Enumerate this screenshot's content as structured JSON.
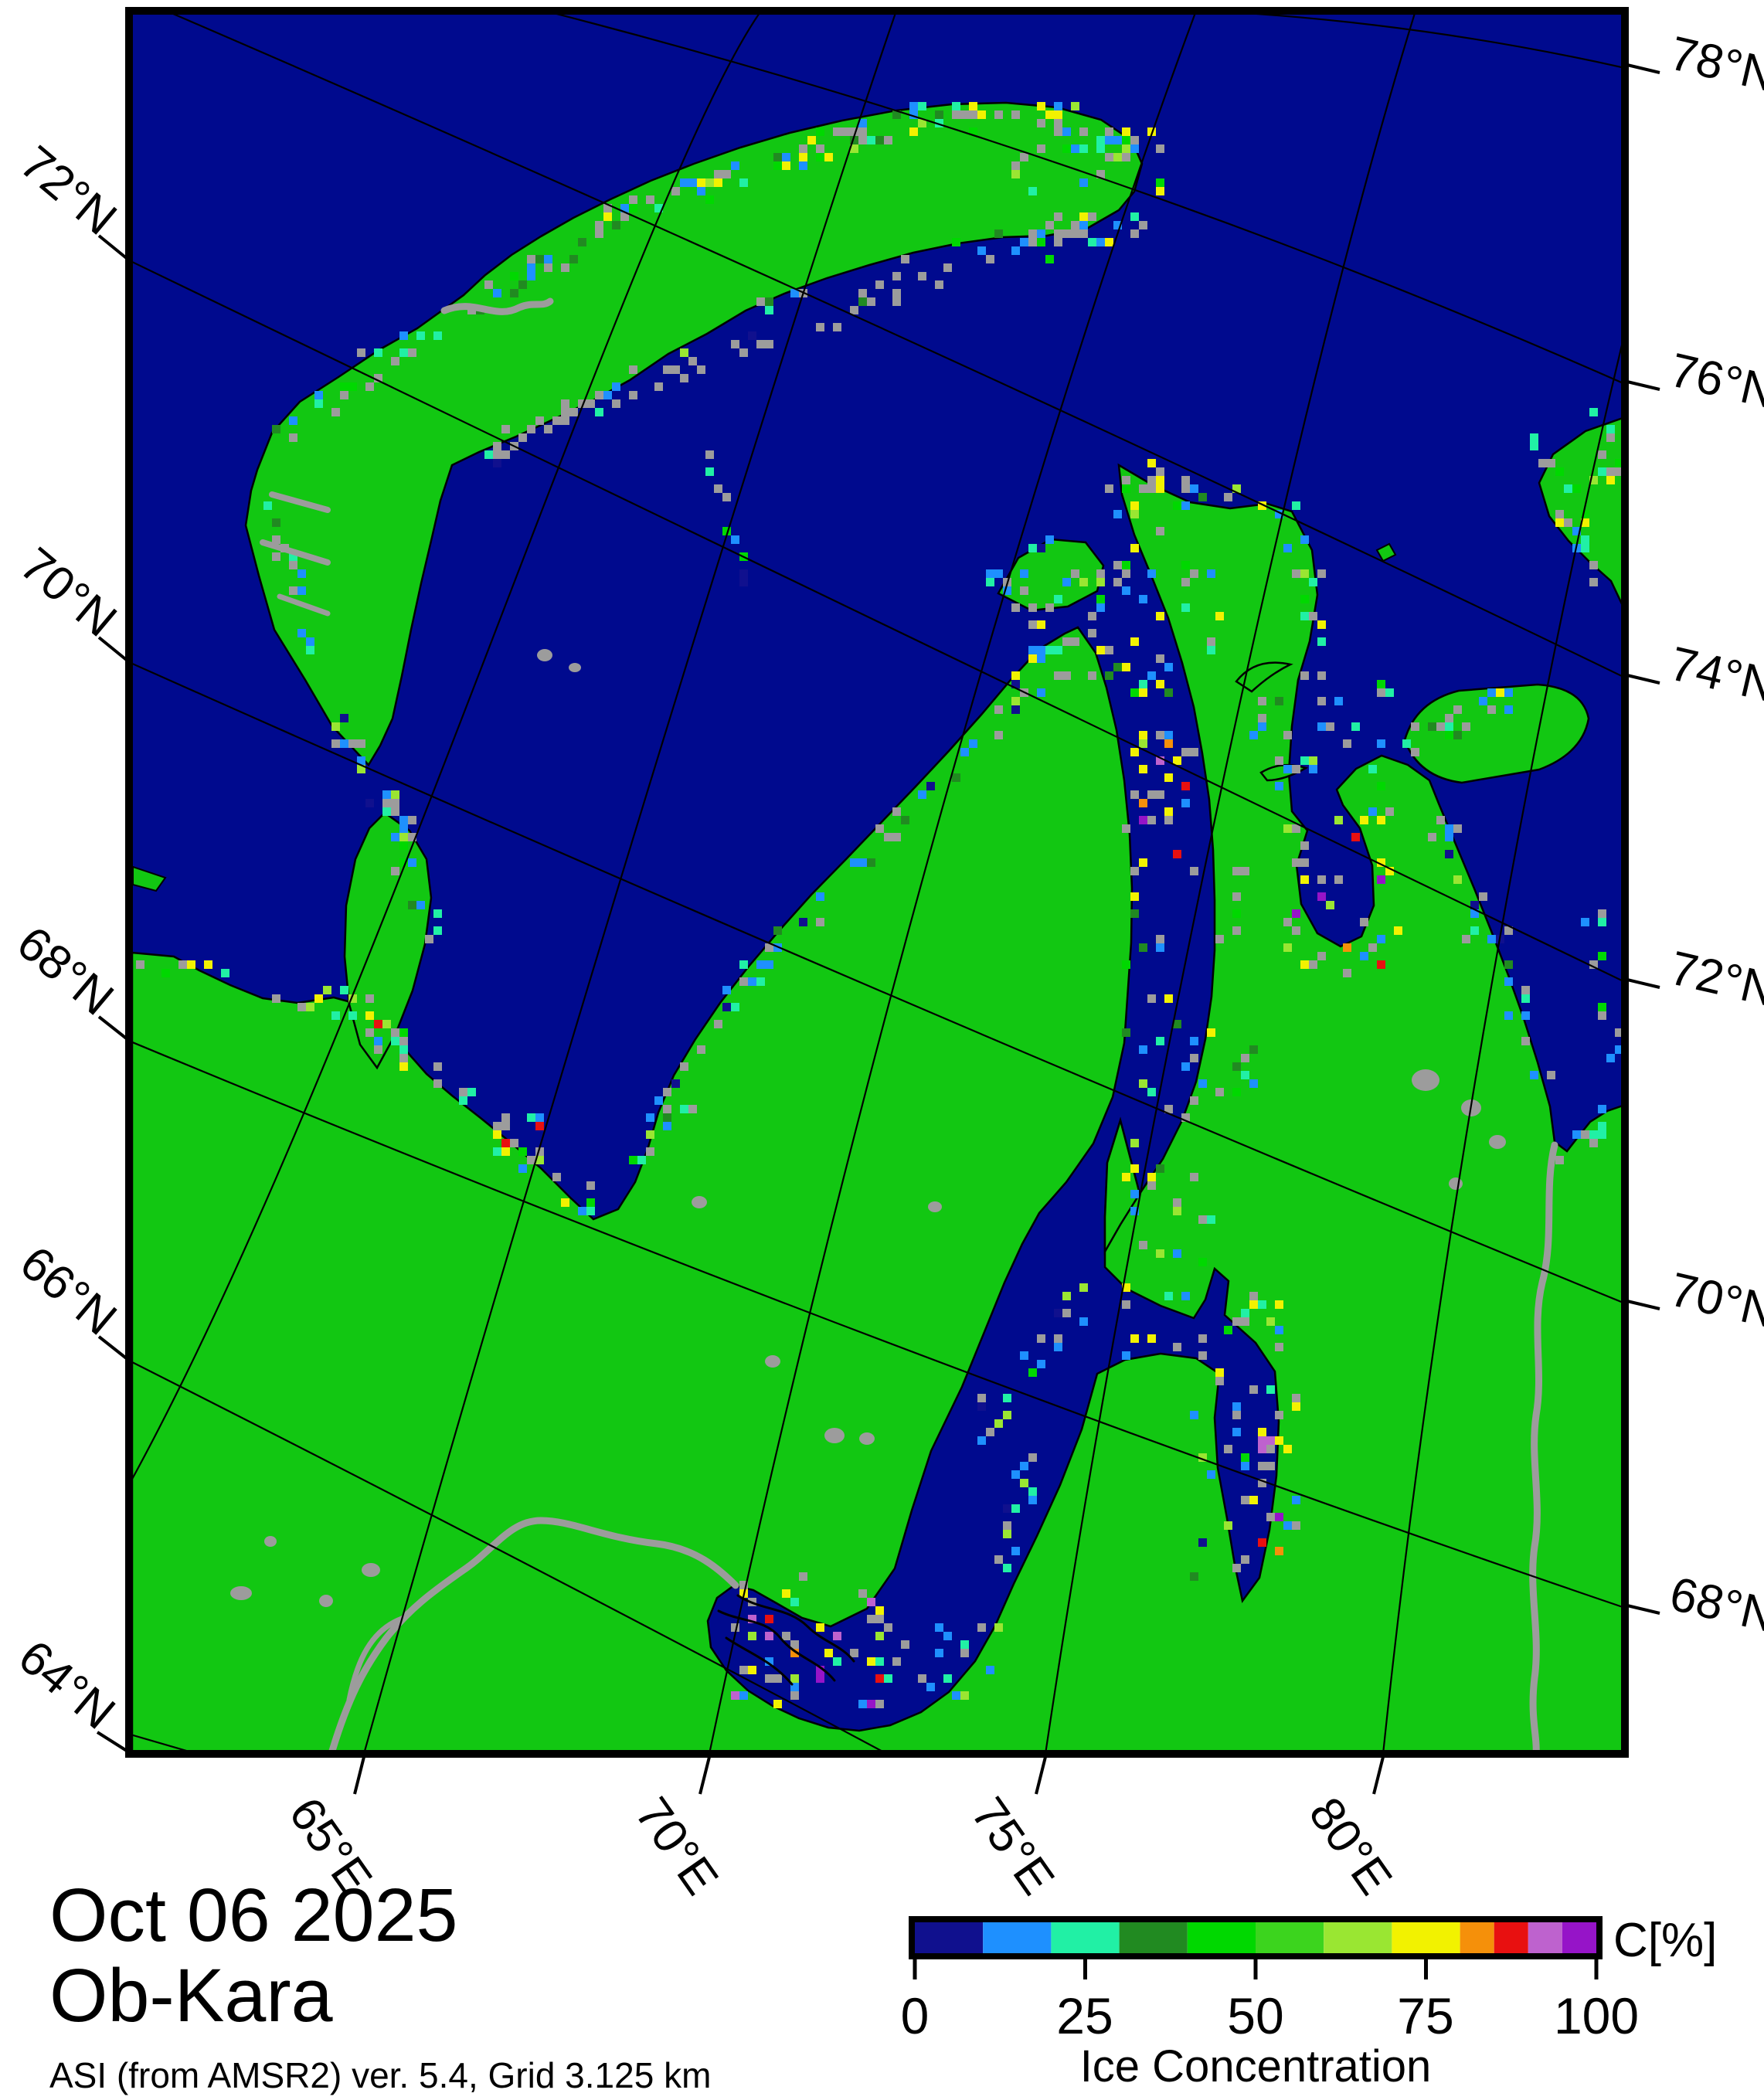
{
  "title_block": {
    "date": "Oct 06 2025",
    "region": "Ob-Kara",
    "source_line": "ASI (from AMSR2) ver. 5.4,  Grid 3.125 km"
  },
  "colorbar": {
    "unit_label": "C[%]",
    "axis_label": "Ice Concentration",
    "tick_labels": [
      "0",
      "25",
      "50",
      "75",
      "100"
    ],
    "range": [
      0,
      100
    ],
    "segments": [
      {
        "range": "0-10",
        "color": "#10108E"
      },
      {
        "range": "10-20",
        "color": "#1E90FF"
      },
      {
        "range": "20-30",
        "color": "#21F0A5"
      },
      {
        "range": "30-40",
        "color": "#218A21"
      },
      {
        "range": "40-50",
        "color": "#00D800"
      },
      {
        "range": "50-60",
        "color": "#3CD41E"
      },
      {
        "range": "60-70",
        "color": "#9AE632"
      },
      {
        "range": "70-80",
        "color": "#F2F200"
      },
      {
        "range": "80-85",
        "color": "#F5900A"
      },
      {
        "range": "85-90",
        "color": "#E81010"
      },
      {
        "range": "90-95",
        "color": "#BE62CE"
      },
      {
        "range": "95-100",
        "color": "#9614C8"
      }
    ]
  },
  "graticule_labels": {
    "left": [
      {
        "text": "72°N"
      },
      {
        "text": "70°N"
      },
      {
        "text": "68°N"
      },
      {
        "text": "66°N"
      },
      {
        "text": "64°N"
      }
    ],
    "right": [
      {
        "text": "78°N"
      },
      {
        "text": "76°N"
      },
      {
        "text": "74°N"
      },
      {
        "text": "72°N"
      },
      {
        "text": "70°N"
      },
      {
        "text": "68°N"
      }
    ],
    "bottom": [
      {
        "text": "65°E"
      },
      {
        "text": "70°E"
      },
      {
        "text": "75°E"
      },
      {
        "text": "80°E"
      }
    ]
  },
  "map_colors": {
    "ocean": "#000A8E",
    "land": "#12C712",
    "coast_mask_gray": "#9C9C9C",
    "coastline": "#000000",
    "graticule": "#000000",
    "frame": "#000000"
  }
}
